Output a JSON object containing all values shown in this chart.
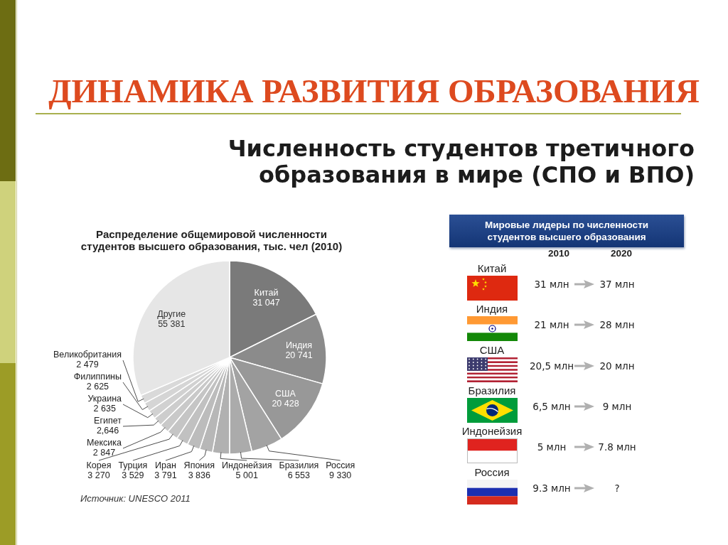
{
  "chart_data": [
    {
      "type": "other",
      "title": "ДИНАМИКА РАЗВИТИЯ ОБРАЗОВАНИЯ",
      "subtitle": "Численность студентов третичного образования в мире (СПО и ВПО)"
    },
    {
      "type": "pie",
      "title": "Распределение общемировой численности студентов высшего образования, тыс. чел (2010)",
      "categories": [
        "Китай",
        "Индия",
        "США",
        "Россия",
        "Бразилия",
        "Индонейзия",
        "Япония",
        "Иран",
        "Турция",
        "Корея",
        "Мексика",
        "Египет",
        "Украина",
        "Филиппины",
        "Великобритания",
        "Другие"
      ],
      "values": [
        31047,
        20741,
        20428,
        9330,
        6553,
        5001,
        3836,
        3791,
        3529,
        3270,
        2847,
        2646,
        2635,
        2625,
        2479,
        55381
      ],
      "value_labels": [
        "31 047",
        "20 741",
        "20 428",
        "9 330",
        "6 553",
        "5 001",
        "3 836",
        "3 791",
        "3 529",
        "3 270",
        "2 847",
        "2,646",
        "2 635",
        "2 625",
        "2 479",
        "55 381"
      ],
      "colors": [
        "#7a7a7a",
        "#8b8b8b",
        "#989898",
        "#a3a3a3",
        "#ababab",
        "#b1b1b1",
        "#b7b7b7",
        "#bcbcbc",
        "#c1c1c1",
        "#c5c5c5",
        "#c9c9c9",
        "#cdcdcd",
        "#d1d1d1",
        "#d5d5d5",
        "#d9d9d9",
        "#e6e6e6"
      ],
      "annotations": [
        "Источник: UNESCO 2011"
      ]
    },
    {
      "type": "other",
      "title": "Мировые лидеры по численности студентов высшего образования",
      "categories": [
        "Китай",
        "Индия",
        "США",
        "Бразилия",
        "Индонейзия",
        "Россия"
      ],
      "series": [
        {
          "name": "2010",
          "values": [
            31,
            21,
            20.5,
            6.5,
            5,
            9.3
          ],
          "value_labels": [
            "31 млн",
            "21 млн",
            "20,5 млн",
            "6,5 млн",
            "5 млн",
            "9.3 млн"
          ]
        },
        {
          "name": "2020",
          "values": [
            37,
            28,
            20,
            9,
            7.8,
            null
          ],
          "value_labels": [
            "37 млн",
            "28 млн",
            "20 млн",
            "9 млн",
            "7.8 млн",
            "?"
          ]
        }
      ]
    }
  ]
}
